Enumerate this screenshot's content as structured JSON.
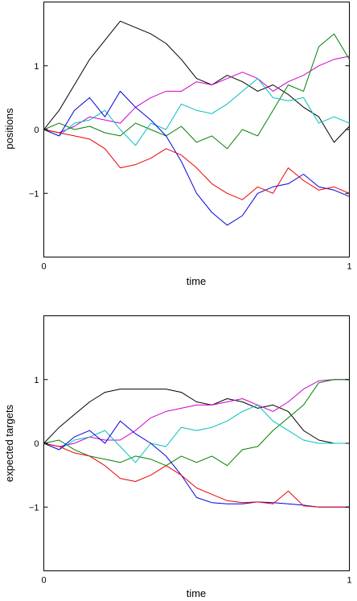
{
  "chart_data": [
    {
      "type": "line",
      "title": "",
      "xlabel": "time",
      "ylabel": "positions",
      "xlim": [
        0,
        1
      ],
      "ylim": [
        -2,
        2
      ],
      "xticks": [
        0,
        1
      ],
      "yticks": [
        -1,
        0,
        1
      ],
      "xtick_labels": [
        "0",
        "1"
      ],
      "ytick_labels": [
        "−1",
        "0",
        "1"
      ],
      "grid": false,
      "legend": "none",
      "series": [
        {
          "color": "#000000",
          "x": [
            0,
            0.05,
            0.1,
            0.15,
            0.2,
            0.25,
            0.3,
            0.35,
            0.4,
            0.45,
            0.5,
            0.55,
            0.6,
            0.65,
            0.7,
            0.75,
            0.8,
            0.85,
            0.9,
            0.95,
            1.0
          ],
          "y": [
            0,
            0.3,
            0.7,
            1.1,
            1.4,
            1.7,
            1.6,
            1.5,
            1.35,
            1.1,
            0.8,
            0.7,
            0.85,
            0.75,
            0.6,
            0.7,
            0.55,
            0.35,
            0.2,
            -0.2,
            0.05
          ]
        },
        {
          "color": "#cc00cc",
          "x": [
            0,
            0.05,
            0.1,
            0.15,
            0.2,
            0.25,
            0.3,
            0.35,
            0.4,
            0.45,
            0.5,
            0.55,
            0.6,
            0.65,
            0.7,
            0.75,
            0.8,
            0.85,
            0.9,
            0.95,
            1.0
          ],
          "y": [
            0,
            -0.05,
            0.05,
            0.2,
            0.15,
            0.1,
            0.35,
            0.5,
            0.6,
            0.6,
            0.75,
            0.7,
            0.8,
            0.9,
            0.8,
            0.6,
            0.75,
            0.85,
            1.0,
            1.1,
            1.15
          ]
        },
        {
          "color": "#008000",
          "x": [
            0,
            0.05,
            0.1,
            0.15,
            0.2,
            0.25,
            0.3,
            0.35,
            0.4,
            0.45,
            0.5,
            0.55,
            0.6,
            0.65,
            0.7,
            0.75,
            0.8,
            0.85,
            0.9,
            0.95,
            1.0
          ],
          "y": [
            0,
            0.1,
            0.0,
            0.05,
            -0.05,
            -0.1,
            0.1,
            0.0,
            -0.1,
            0.05,
            -0.2,
            -0.1,
            -0.3,
            0.0,
            -0.1,
            0.3,
            0.7,
            0.6,
            1.3,
            1.5,
            1.1
          ]
        },
        {
          "color": "#00bfbf",
          "x": [
            0,
            0.05,
            0.1,
            0.15,
            0.2,
            0.25,
            0.3,
            0.35,
            0.4,
            0.45,
            0.5,
            0.55,
            0.6,
            0.65,
            0.7,
            0.75,
            0.8,
            0.85,
            0.9,
            0.95,
            1.0
          ],
          "y": [
            0,
            -0.1,
            0.1,
            0.15,
            0.3,
            0.0,
            -0.25,
            0.1,
            0.0,
            0.4,
            0.3,
            0.25,
            0.4,
            0.6,
            0.8,
            0.5,
            0.45,
            0.5,
            0.1,
            0.2,
            0.1
          ]
        },
        {
          "color": "#0000dd",
          "x": [
            0,
            0.05,
            0.1,
            0.15,
            0.2,
            0.25,
            0.3,
            0.35,
            0.4,
            0.45,
            0.5,
            0.55,
            0.6,
            0.65,
            0.7,
            0.75,
            0.8,
            0.85,
            0.9,
            0.95,
            1.0
          ],
          "y": [
            0,
            -0.1,
            0.3,
            0.5,
            0.2,
            0.6,
            0.35,
            0.15,
            -0.1,
            -0.5,
            -1.0,
            -1.3,
            -1.5,
            -1.35,
            -1.0,
            -0.9,
            -0.85,
            -0.7,
            -0.9,
            -0.95,
            -1.05
          ]
        },
        {
          "color": "#ee0000",
          "x": [
            0,
            0.05,
            0.1,
            0.15,
            0.2,
            0.25,
            0.3,
            0.35,
            0.4,
            0.45,
            0.5,
            0.55,
            0.6,
            0.65,
            0.7,
            0.75,
            0.8,
            0.85,
            0.9,
            0.95,
            1.0
          ],
          "y": [
            0,
            -0.05,
            -0.1,
            -0.15,
            -0.3,
            -0.6,
            -0.55,
            -0.45,
            -0.3,
            -0.4,
            -0.6,
            -0.85,
            -1.0,
            -1.1,
            -0.9,
            -1.0,
            -0.6,
            -0.8,
            -0.95,
            -0.9,
            -1.0
          ]
        }
      ]
    },
    {
      "type": "line",
      "title": "",
      "xlabel": "time",
      "ylabel": "expected targets",
      "xlim": [
        0,
        1
      ],
      "ylim": [
        -2,
        2
      ],
      "xticks": [
        0,
        1
      ],
      "yticks": [
        -1,
        0,
        1
      ],
      "xtick_labels": [
        "0",
        "1"
      ],
      "ytick_labels": [
        "−1",
        "0",
        "1"
      ],
      "grid": false,
      "legend": "none",
      "series": [
        {
          "color": "#000000",
          "x": [
            0,
            0.05,
            0.1,
            0.15,
            0.2,
            0.25,
            0.3,
            0.35,
            0.4,
            0.45,
            0.5,
            0.55,
            0.6,
            0.65,
            0.7,
            0.75,
            0.8,
            0.85,
            0.9,
            0.95,
            1.0
          ],
          "y": [
            0,
            0.25,
            0.45,
            0.65,
            0.8,
            0.85,
            0.85,
            0.85,
            0.85,
            0.8,
            0.65,
            0.6,
            0.7,
            0.65,
            0.55,
            0.6,
            0.5,
            0.2,
            0.05,
            0.0,
            0.0
          ]
        },
        {
          "color": "#cc00cc",
          "x": [
            0,
            0.05,
            0.1,
            0.15,
            0.2,
            0.25,
            0.3,
            0.35,
            0.4,
            0.45,
            0.5,
            0.55,
            0.6,
            0.65,
            0.7,
            0.75,
            0.8,
            0.85,
            0.9,
            0.95,
            1.0
          ],
          "y": [
            0,
            -0.05,
            0.0,
            0.1,
            0.05,
            0.05,
            0.2,
            0.4,
            0.5,
            0.55,
            0.6,
            0.6,
            0.65,
            0.7,
            0.6,
            0.5,
            0.65,
            0.85,
            0.98,
            1.0,
            1.0
          ]
        },
        {
          "color": "#008000",
          "x": [
            0,
            0.05,
            0.1,
            0.15,
            0.2,
            0.25,
            0.3,
            0.35,
            0.4,
            0.45,
            0.5,
            0.55,
            0.6,
            0.65,
            0.7,
            0.75,
            0.8,
            0.85,
            0.9,
            0.95,
            1.0
          ],
          "y": [
            0,
            0.05,
            -0.1,
            -0.2,
            -0.25,
            -0.3,
            -0.2,
            -0.25,
            -0.35,
            -0.2,
            -0.3,
            -0.2,
            -0.35,
            -0.1,
            -0.05,
            0.2,
            0.4,
            0.6,
            0.95,
            1.0,
            1.0
          ]
        },
        {
          "color": "#00bfbf",
          "x": [
            0,
            0.05,
            0.1,
            0.15,
            0.2,
            0.25,
            0.3,
            0.35,
            0.4,
            0.45,
            0.5,
            0.55,
            0.6,
            0.65,
            0.7,
            0.75,
            0.8,
            0.85,
            0.9,
            0.95,
            1.0
          ],
          "y": [
            0,
            -0.1,
            0.05,
            0.1,
            0.2,
            -0.05,
            -0.3,
            0.0,
            -0.05,
            0.25,
            0.2,
            0.25,
            0.35,
            0.5,
            0.6,
            0.35,
            0.2,
            0.05,
            0.0,
            0.0,
            0.0
          ]
        },
        {
          "color": "#0000dd",
          "x": [
            0,
            0.05,
            0.1,
            0.15,
            0.2,
            0.25,
            0.3,
            0.35,
            0.4,
            0.45,
            0.5,
            0.55,
            0.6,
            0.65,
            0.7,
            0.75,
            0.8,
            0.85,
            0.9,
            0.95,
            1.0
          ],
          "y": [
            0,
            -0.1,
            0.1,
            0.2,
            0.0,
            0.35,
            0.15,
            0.0,
            -0.2,
            -0.5,
            -0.85,
            -0.93,
            -0.95,
            -0.95,
            -0.92,
            -0.93,
            -0.95,
            -0.97,
            -1.0,
            -1.0,
            -1.0
          ]
        },
        {
          "color": "#ee0000",
          "x": [
            0,
            0.05,
            0.1,
            0.15,
            0.2,
            0.25,
            0.3,
            0.35,
            0.4,
            0.45,
            0.5,
            0.55,
            0.6,
            0.65,
            0.7,
            0.75,
            0.8,
            0.85,
            0.9,
            0.95,
            1.0
          ],
          "y": [
            0,
            -0.05,
            -0.15,
            -0.2,
            -0.35,
            -0.55,
            -0.6,
            -0.5,
            -0.35,
            -0.5,
            -0.7,
            -0.8,
            -0.9,
            -0.93,
            -0.92,
            -0.95,
            -0.75,
            -0.98,
            -1.0,
            -1.0,
            -1.0
          ]
        }
      ]
    }
  ]
}
